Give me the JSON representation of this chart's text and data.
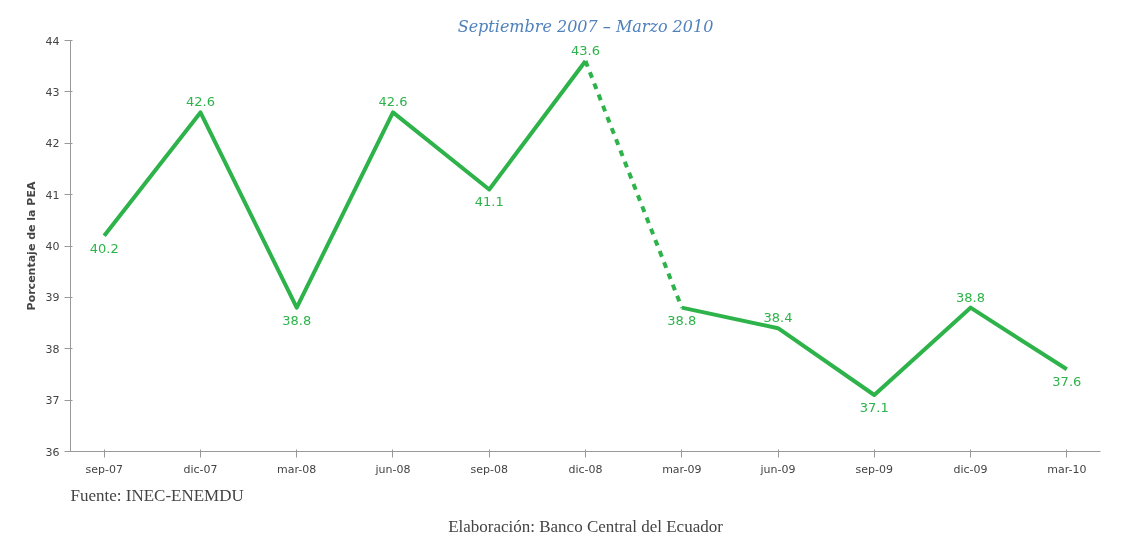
{
  "chart_data": {
    "type": "line",
    "subtitle": "Septiembre 2007 – Marzo 2010",
    "ylabel": "Porcentaje de la PEA",
    "categories": [
      "sep-07",
      "dic-07",
      "mar-08",
      "jun-08",
      "sep-08",
      "dic-08",
      "mar-09",
      "jun-09",
      "sep-09",
      "dic-09",
      "mar-10"
    ],
    "series": [
      {
        "color": "#2db34a",
        "line_style": "solid",
        "values": [
          40.2,
          42.6,
          38.8,
          42.6,
          41.1,
          43.6,
          null,
          null,
          null,
          null,
          null
        ],
        "value_labels": [
          "40.2",
          "42.6",
          "38.8",
          "42.6",
          "41.1",
          "43.6",
          null,
          null,
          null,
          null,
          null
        ]
      },
      {
        "color": "#2db34a",
        "line_style": "dashed",
        "values": [
          null,
          null,
          null,
          null,
          null,
          43.6,
          38.8,
          null,
          null,
          null,
          null
        ],
        "value_labels": [
          null,
          null,
          null,
          null,
          null,
          null,
          null,
          null,
          null,
          null,
          null
        ]
      },
      {
        "color": "#2db34a",
        "line_style": "solid",
        "values": [
          null,
          null,
          null,
          null,
          null,
          null,
          38.8,
          38.4,
          37.1,
          38.8,
          37.6
        ],
        "value_labels": [
          null,
          null,
          null,
          null,
          null,
          null,
          "38.8",
          "38.4",
          "37.1",
          "38.8",
          "37.6"
        ]
      }
    ],
    "ylim": [
      36,
      44
    ],
    "yticks": [
      36,
      37,
      38,
      39,
      40,
      41,
      42,
      43,
      44
    ],
    "grid": false,
    "marker": "none",
    "annotations": [
      "Fuente: INEC-ENEMDU",
      "Elaboración: Banco Central del Ecuador"
    ]
  }
}
